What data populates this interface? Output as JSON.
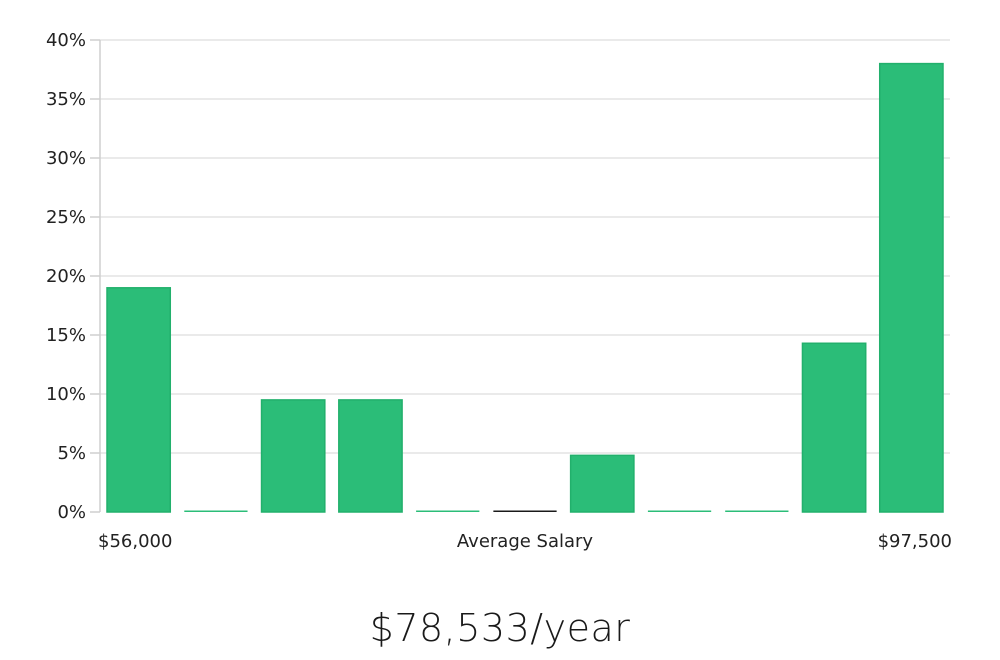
{
  "chart_data": {
    "type": "bar",
    "xlabel": "Average Salary",
    "x_min_label": "$56,000",
    "x_max_label": "$97,500",
    "ylim": [
      0,
      40
    ],
    "yticks": [
      "0%",
      "5%",
      "10%",
      "15%",
      "20%",
      "25%",
      "30%",
      "35%",
      "40%"
    ],
    "grid": true,
    "values": [
      19.0,
      0,
      9.5,
      9.5,
      0,
      0,
      4.8,
      0,
      0,
      14.3,
      38.0
    ],
    "highlight_index": 5,
    "colors": {
      "bar": "#2bbd78",
      "bar_stroke": "#22b06c",
      "highlight": "#1a1a1a",
      "grid": "#e4e4e4",
      "axis": "#cfcfcf"
    }
  },
  "summary": {
    "average_salary": "$78,533/year"
  }
}
